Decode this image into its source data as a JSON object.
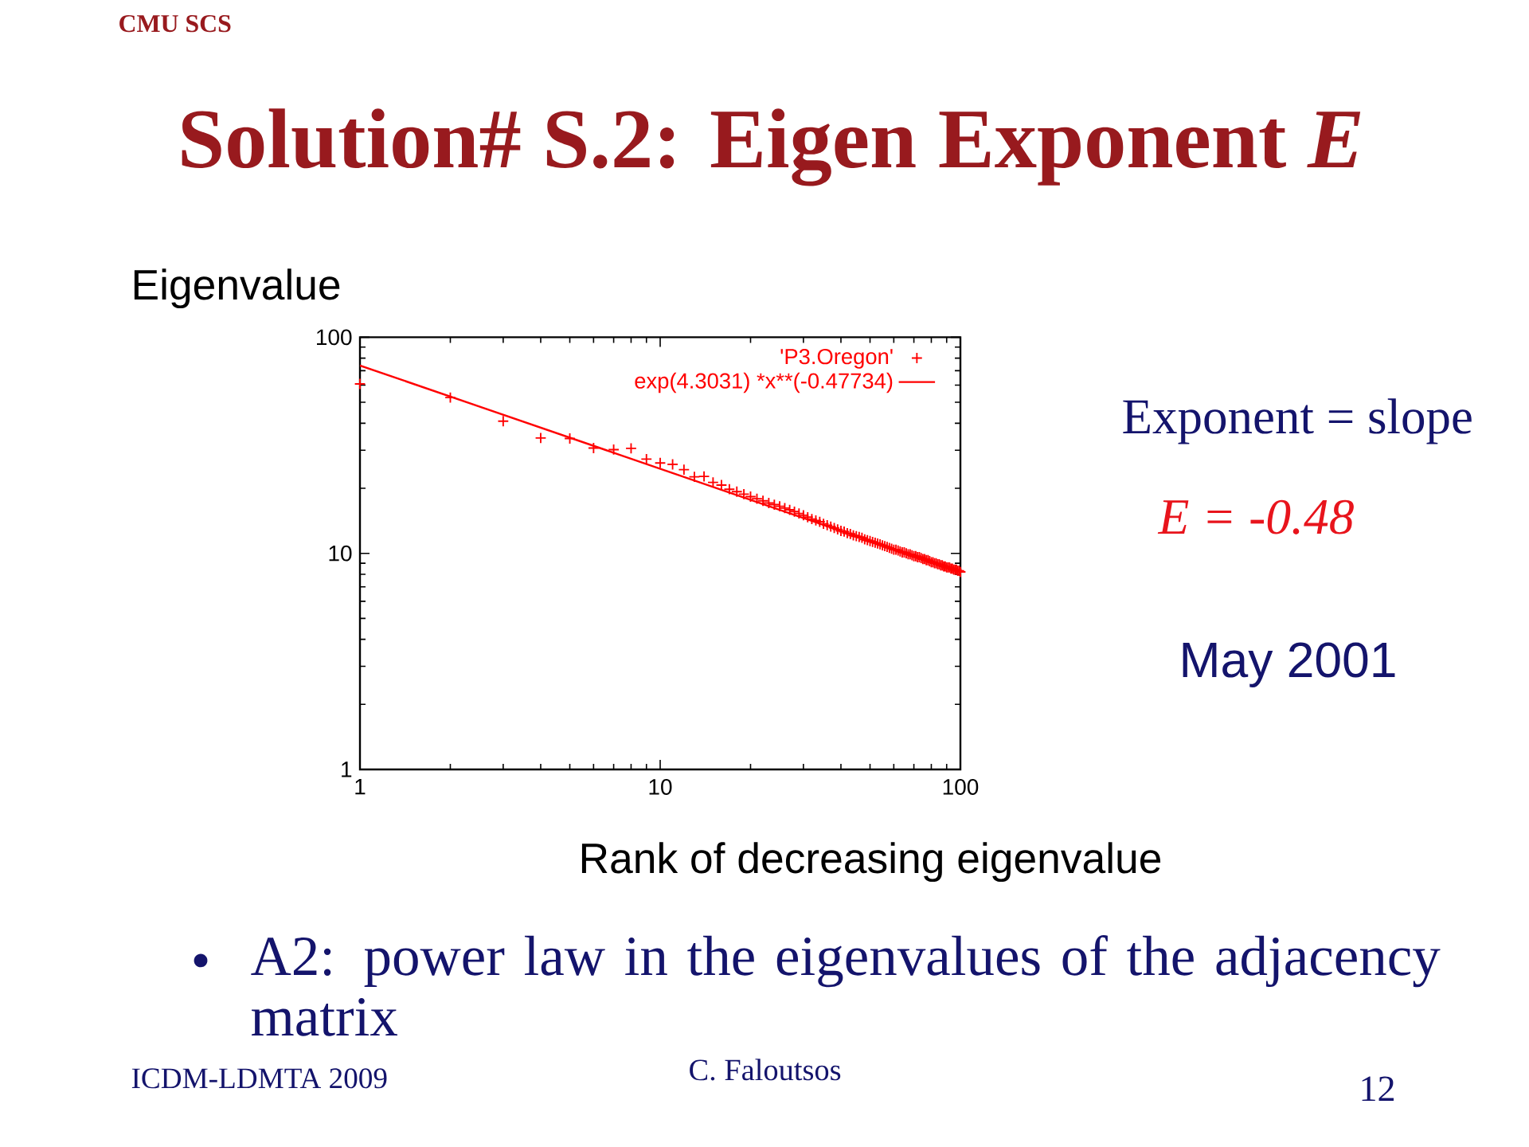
{
  "chart_data": {
    "type": "scatter",
    "title": "Solution# S.2: Eigen Exponent *E*",
    "xlabel": "Rank of decreasing eigenvalue",
    "ylabel": "Eigenvalue",
    "annotations": [
      "CMU SCS",
      "Exponent = slope",
      "E = -0.48",
      "May 2001",
      "A2: power law in the eigenvalues of the adjacency matrix",
      "ICDM-LDMTA 2009",
      "C. Faloutsos",
      "12"
    ],
    "log": "xy",
    "xlim": [
      1,
      100
    ],
    "ylim": [
      1,
      100
    ],
    "xticks": [
      1,
      10,
      100
    ],
    "yticks": [
      1,
      10,
      100
    ],
    "grid": false,
    "legend": "top right",
    "series": [
      {
        "name": "'P3.Oregon'",
        "marker": "cross",
        "color": "#ff0000",
        "x": [
          1,
          2,
          3,
          4,
          5,
          6,
          7,
          8,
          9,
          10,
          11,
          12,
          13,
          14,
          15,
          16,
          17,
          18,
          19,
          20,
          21,
          22,
          23,
          24,
          25,
          26,
          27,
          28,
          29,
          30,
          31,
          32,
          33,
          34,
          35,
          36,
          37,
          38,
          39,
          40,
          41,
          42,
          43,
          44,
          45,
          46,
          47,
          48,
          49,
          50,
          51,
          52,
          53,
          54,
          55,
          56,
          57,
          58,
          59,
          60,
          61,
          62,
          63,
          64,
          65,
          66,
          67,
          68,
          69,
          70,
          71,
          72,
          73,
          74,
          75,
          76,
          77,
          78,
          79,
          80,
          81,
          82,
          83,
          84,
          85,
          86,
          87,
          88,
          89,
          90,
          91,
          92,
          93,
          94,
          95,
          96,
          97,
          98,
          99,
          100
        ],
        "values": [
          60.8,
          52.6,
          40.9,
          34.2,
          34.0,
          30.7,
          30.2,
          30.6,
          27.3,
          26.2,
          25.8,
          24.4,
          22.6,
          22.7,
          21.3,
          20.7,
          19.8,
          19.3,
          18.8,
          18.3,
          17.9,
          17.5,
          17.1,
          16.8,
          16.5,
          16.2,
          15.9,
          15.6,
          15.3,
          15.0,
          14.7,
          14.4,
          14.2,
          14.0,
          13.7,
          13.5,
          13.3,
          13.1,
          12.9,
          12.7,
          12.6,
          12.4,
          12.3,
          12.1,
          12.0,
          11.9,
          11.8,
          11.6,
          11.5,
          11.4,
          11.3,
          11.2,
          11.1,
          11.0,
          10.9,
          10.8,
          10.7,
          10.6,
          10.5,
          10.4,
          10.4,
          10.3,
          10.2,
          10.1,
          10.1,
          10.0,
          9.9,
          9.9,
          9.8,
          9.7,
          9.7,
          9.6,
          9.6,
          9.5,
          9.4,
          9.4,
          9.3,
          9.3,
          9.2,
          9.1,
          9.1,
          9.0,
          9.0,
          8.9,
          8.9,
          8.8,
          8.8,
          8.7,
          8.7,
          8.6,
          8.6,
          8.6,
          8.5,
          8.5,
          8.4,
          8.4,
          8.4,
          8.3,
          8.3,
          8.2
        ]
      },
      {
        "name": "exp(4.3031) *x**(-0.47734)",
        "type": "line",
        "marker": "none",
        "line_style": "solid",
        "color": "#ff0000",
        "x": [
          1,
          100
        ],
        "values": [
          74,
          8.2
        ]
      }
    ]
  }
}
